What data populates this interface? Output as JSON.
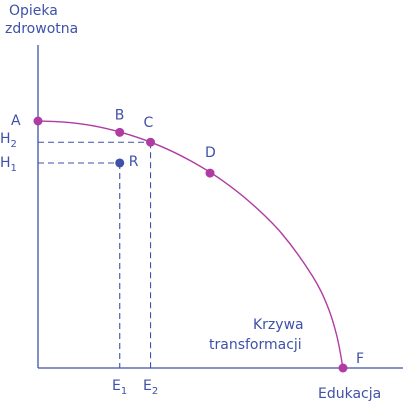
{
  "chart_data": {
    "type": "line",
    "ylabel": [
      "Opieka",
      "zdrowotna"
    ],
    "xlabel": "Edukacja",
    "curve_label": [
      "Krzywa",
      "transformacji"
    ],
    "xlim": [
      0,
      100
    ],
    "ylim": [
      0,
      100
    ],
    "grid": false,
    "curve": [
      [
        0,
        100
      ],
      [
        10,
        99.4
      ],
      [
        20,
        97.6
      ],
      [
        30,
        94.4
      ],
      [
        40,
        89.9
      ],
      [
        50,
        83.9
      ],
      [
        60,
        76.3
      ],
      [
        70,
        66.6
      ],
      [
        80,
        54.3
      ],
      [
        90,
        37.2
      ],
      [
        95,
        24.8
      ],
      [
        98,
        12.9
      ],
      [
        100,
        0
      ]
    ],
    "points": [
      {
        "label": "A",
        "x": 0,
        "y": 100
      },
      {
        "label": "B",
        "x": 26.8,
        "y": 95.4
      },
      {
        "label": "C",
        "x": 36.9,
        "y": 91.4
      },
      {
        "label": "D",
        "x": 56.4,
        "y": 78.9
      },
      {
        "label": "F",
        "x": 100,
        "y": 0
      },
      {
        "label": "R",
        "x": 26.8,
        "y": 83.0
      }
    ],
    "ref_labels": {
      "H2": {
        "letter": "H",
        "sub": "2"
      },
      "H1": {
        "letter": "H",
        "sub": "1"
      },
      "E1": {
        "letter": "E",
        "sub": "1"
      },
      "E2": {
        "letter": "E",
        "sub": "2"
      }
    },
    "colors": {
      "axis": "#3f51a8",
      "curve": "#b03ba3",
      "point": "#b03ba3",
      "point_r": "#3f51a8",
      "dashed": "#3f51a8",
      "text": "#3f51a8"
    }
  }
}
